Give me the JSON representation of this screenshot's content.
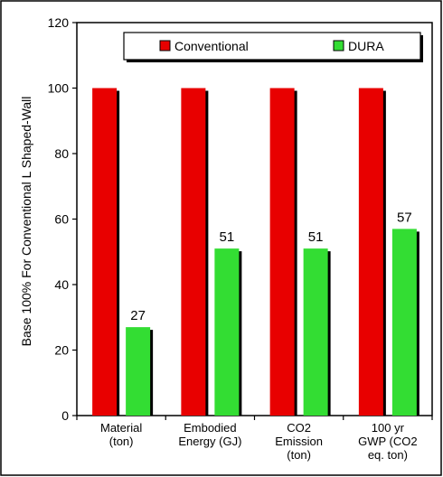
{
  "chart_data": {
    "type": "bar",
    "title": "",
    "xlabel": "",
    "ylabel": "Base 100% For Conventional L Shaped-Wall",
    "ylim": [
      0,
      120
    ],
    "yticks": [
      0,
      20,
      40,
      60,
      80,
      100,
      120
    ],
    "categories": [
      [
        "Material",
        "(ton)"
      ],
      [
        "Embodied",
        "Energy (GJ)"
      ],
      [
        "CO2",
        "Emission",
        "(ton)"
      ],
      [
        "100 yr",
        "GWP (CO2",
        "eq. ton)"
      ]
    ],
    "series": [
      {
        "name": "Conventional",
        "color": "#e80000",
        "values": [
          100,
          100,
          100,
          100
        ],
        "labels": [
          "",
          "",
          "",
          ""
        ]
      },
      {
        "name": "DURA",
        "color": "#33dd33",
        "values": [
          27,
          51,
          51,
          57
        ],
        "labels": [
          "27",
          "51",
          "51",
          "57"
        ]
      }
    ],
    "legend": "top-right",
    "grid": false
  }
}
